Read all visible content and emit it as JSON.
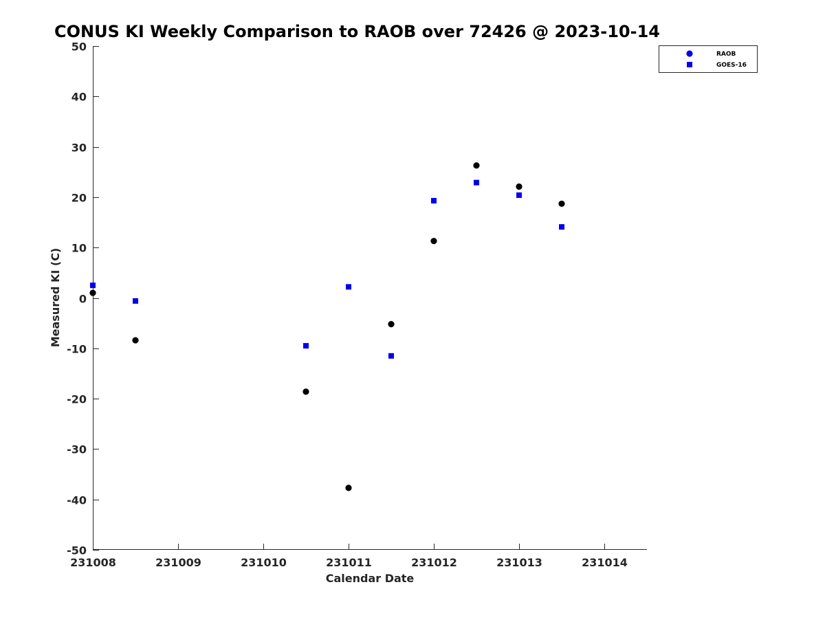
{
  "chart_data": {
    "type": "scatter",
    "title": "CONUS KI Weekly Comparison to RAOB over 72426 @ 2023-10-14",
    "xlabel": "Calendar Date",
    "ylabel": "Measured KI (C)",
    "xlim": [
      "2023-10-08 00:00",
      "2023-10-14 12:00"
    ],
    "ylim": [
      -50,
      50
    ],
    "x_ticks": [
      "2023-10-08",
      "2023-10-09",
      "2023-10-10",
      "2023-10-11",
      "2023-10-12",
      "2023-10-13",
      "2023-10-14"
    ],
    "x_tick_labels": [
      "231008",
      "231009",
      "231010",
      "231011",
      "231012",
      "231013",
      "231014"
    ],
    "y_ticks": [
      50,
      40,
      30,
      20,
      10,
      0,
      -10,
      -20,
      -30,
      -40,
      -50
    ],
    "grid": false,
    "legend_position": "top-right",
    "series": [
      {
        "name": "RAOB",
        "marker": "circle",
        "color": "#000000",
        "legend_color": "#0000ee",
        "points": [
          {
            "x": "2023-10-08 00:00",
            "y": 1.0
          },
          {
            "x": "2023-10-08 12:00",
            "y": -8.4
          },
          {
            "x": "2023-10-10 12:00",
            "y": -18.6
          },
          {
            "x": "2023-10-11 00:00",
            "y": -37.7
          },
          {
            "x": "2023-10-11 12:00",
            "y": -5.2
          },
          {
            "x": "2023-10-12 00:00",
            "y": 11.3
          },
          {
            "x": "2023-10-12 12:00",
            "y": 26.3
          },
          {
            "x": "2023-10-13 00:00",
            "y": 22.1
          },
          {
            "x": "2023-10-13 12:00",
            "y": 18.7
          }
        ]
      },
      {
        "name": "GOES-16",
        "marker": "square",
        "color": "#0000ee",
        "points": [
          {
            "x": "2023-10-08 00:00",
            "y": 2.5
          },
          {
            "x": "2023-10-08 12:00",
            "y": -0.6
          },
          {
            "x": "2023-10-10 12:00",
            "y": -9.5
          },
          {
            "x": "2023-10-11 00:00",
            "y": 2.2
          },
          {
            "x": "2023-10-11 12:00",
            "y": -11.5
          },
          {
            "x": "2023-10-12 00:00",
            "y": 19.3
          },
          {
            "x": "2023-10-12 12:00",
            "y": 22.9
          },
          {
            "x": "2023-10-13 00:00",
            "y": 20.4
          },
          {
            "x": "2023-10-13 12:00",
            "y": 14.1
          }
        ]
      }
    ]
  }
}
